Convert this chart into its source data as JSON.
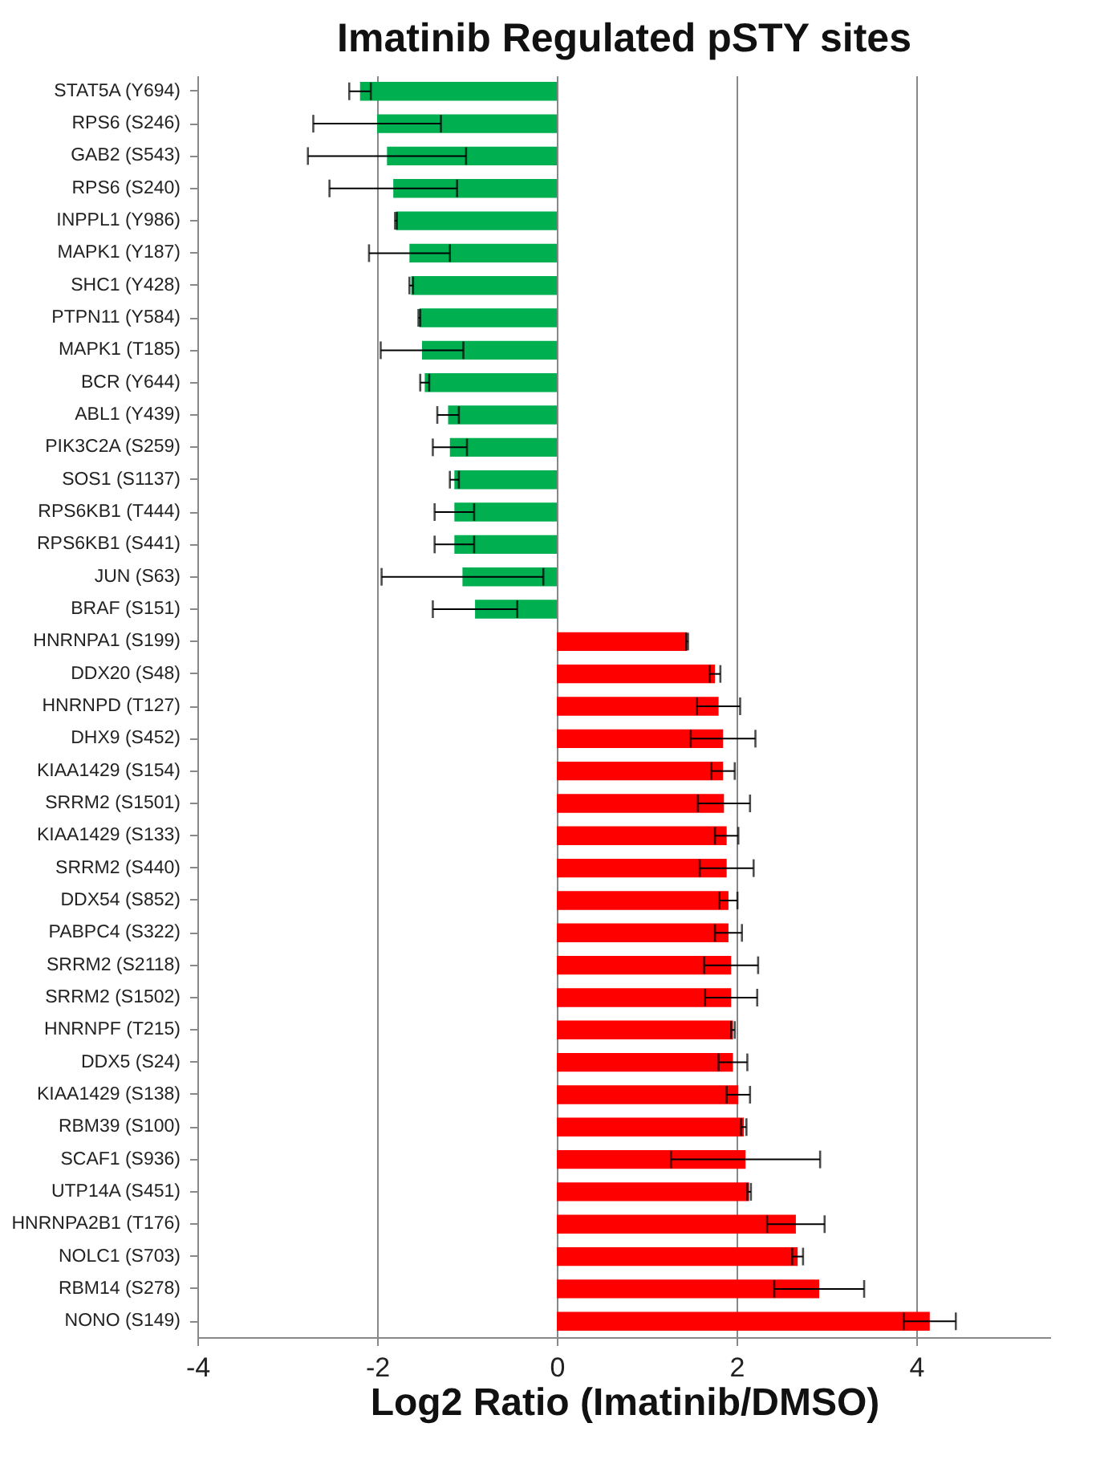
{
  "chart_data": {
    "type": "bar",
    "orientation": "horizontal",
    "title": "Imatinib Regulated pSTY sites",
    "xlabel": "Log2 Ratio (Imatinib/DMSO)",
    "categories": [
      "STAT5A (Y694)",
      "RPS6 (S246)",
      "GAB2 (S543)",
      "RPS6 (S240)",
      "INPPL1 (Y986)",
      "MAPK1 (Y187)",
      "SHC1 (Y428)",
      "PTPN11 (Y584)",
      "MAPK1 (T185)",
      "BCR (Y644)",
      "ABL1 (Y439)",
      "PIK3C2A (S259)",
      "SOS1 (S1137)",
      "RPS6KB1 (T444)",
      "RPS6KB1 (S441)",
      "JUN (S63)",
      "BRAF (S151)",
      "HNRNPA1 (S199)",
      "DDX20 (S48)",
      "HNRNPD (T127)",
      "DHX9 (S452)",
      "KIAA1429 (S154)",
      "SRRM2 (S1501)",
      "KIAA1429 (S133)",
      "SRRM2 (S440)",
      "DDX54 (S852)",
      "PABPC4 (S322)",
      "SRRM2 (S2118)",
      "SRRM2 (S1502)",
      "HNRNPF (T215)",
      "DDX5 (S24)",
      "KIAA1429 (S138)",
      "RBM39 (S100)",
      "SCAF1 (S936)",
      "UTP14A (S451)",
      "HNRNPA2B1 (T176)",
      "NOLC1 (S703)",
      "RBM14 (S278)",
      "NONO (S149)"
    ],
    "values": [
      -2.19,
      -2.0,
      -1.89,
      -1.82,
      -1.79,
      -1.64,
      -1.62,
      -1.53,
      -1.5,
      -1.47,
      -1.21,
      -1.19,
      -1.14,
      -1.14,
      -1.14,
      -1.05,
      -0.91,
      1.45,
      1.76,
      1.8,
      1.85,
      1.85,
      1.86,
      1.89,
      1.89,
      1.91,
      1.91,
      1.94,
      1.94,
      1.96,
      1.96,
      2.02,
      2.08,
      2.1,
      2.14,
      2.66,
      2.68,
      2.92,
      4.15
    ],
    "errors": [
      0.12,
      0.71,
      0.88,
      0.71,
      0.01,
      0.45,
      0.02,
      0.01,
      0.46,
      0.05,
      0.12,
      0.19,
      0.05,
      0.22,
      0.22,
      0.9,
      0.47,
      0.01,
      0.06,
      0.24,
      0.36,
      0.13,
      0.29,
      0.13,
      0.3,
      0.1,
      0.15,
      0.3,
      0.29,
      0.02,
      0.16,
      0.13,
      0.03,
      0.83,
      0.02,
      0.32,
      0.06,
      0.5,
      0.29
    ],
    "colors": [
      "#00b050",
      "#00b050",
      "#00b050",
      "#00b050",
      "#00b050",
      "#00b050",
      "#00b050",
      "#00b050",
      "#00b050",
      "#00b050",
      "#00b050",
      "#00b050",
      "#00b050",
      "#00b050",
      "#00b050",
      "#00b050",
      "#00b050",
      "#ff0000",
      "#ff0000",
      "#ff0000",
      "#ff0000",
      "#ff0000",
      "#ff0000",
      "#ff0000",
      "#ff0000",
      "#ff0000",
      "#ff0000",
      "#ff0000",
      "#ff0000",
      "#ff0000",
      "#ff0000",
      "#ff0000",
      "#ff0000",
      "#ff0000",
      "#ff0000",
      "#ff0000",
      "#ff0000",
      "#ff0000",
      "#ff0000"
    ],
    "xlim": [
      -4,
      5.5
    ],
    "xticks": [
      -4,
      -2,
      0,
      2,
      4
    ],
    "grid": "x"
  }
}
